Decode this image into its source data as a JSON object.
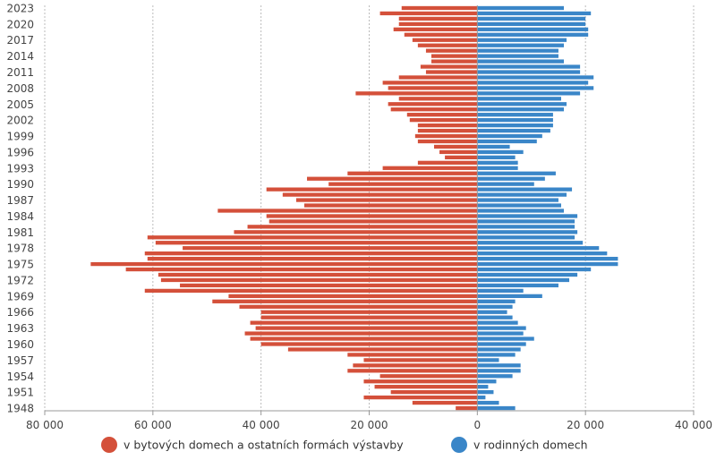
{
  "colors": {
    "left_series": "#d4503a",
    "right_series": "#3a86c8",
    "grid": "#bbbbbb",
    "axis": "#999999",
    "text": "#444444"
  },
  "chart_data": {
    "type": "bar",
    "orientation": "horizontal-diverging",
    "title": "",
    "xlabel": "",
    "ylabel": "",
    "xlim": [
      -80000,
      40000
    ],
    "grid": true,
    "legend_position": "bottom",
    "x_tick_labels": [
      "80 000",
      "60 000",
      "40 000",
      "20 000",
      "0",
      "20 000",
      "40 000"
    ],
    "y_tick_labels": [
      "2023",
      "2020",
      "2017",
      "2014",
      "2011",
      "2008",
      "2005",
      "2002",
      "1999",
      "1996",
      "1993",
      "1990",
      "1987",
      "1984",
      "1981",
      "1978",
      "1975",
      "1972",
      "1969",
      "1966",
      "1963",
      "1960",
      "1957",
      "1954",
      "1951",
      "1948"
    ],
    "categories": [
      1948,
      1949,
      1950,
      1951,
      1952,
      1953,
      1954,
      1955,
      1956,
      1957,
      1958,
      1959,
      1960,
      1961,
      1962,
      1963,
      1964,
      1965,
      1966,
      1967,
      1968,
      1969,
      1970,
      1971,
      1972,
      1973,
      1974,
      1975,
      1976,
      1977,
      1978,
      1979,
      1980,
      1981,
      1982,
      1983,
      1984,
      1985,
      1986,
      1987,
      1988,
      1989,
      1990,
      1991,
      1992,
      1993,
      1994,
      1995,
      1996,
      1997,
      1998,
      1999,
      2000,
      2001,
      2002,
      2003,
      2004,
      2005,
      2006,
      2007,
      2008,
      2009,
      2010,
      2011,
      2012,
      2013,
      2014,
      2015,
      2016,
      2017,
      2018,
      2019,
      2020,
      2021,
      2022,
      2023
    ],
    "series": [
      {
        "name": "v bytových domech a ostatních formách výstavby",
        "values": [
          4000,
          12000,
          21000,
          16000,
          19000,
          21000,
          18000,
          24000,
          23000,
          21000,
          24000,
          35000,
          40000,
          42000,
          43000,
          41000,
          42000,
          40000,
          40000,
          44000,
          49000,
          46000,
          61500,
          55000,
          58500,
          59000,
          65000,
          71500,
          61000,
          61500,
          54500,
          59500,
          61000,
          45000,
          42500,
          38500,
          39000,
          48000,
          32000,
          33500,
          36000,
          39000,
          27500,
          31500,
          24000,
          17500,
          11000,
          6000,
          7000,
          8000,
          11000,
          11500,
          11000,
          11000,
          12500,
          13000,
          16000,
          16500,
          14500,
          22500,
          16500,
          17500,
          14500,
          9500,
          10500,
          8500,
          8500,
          9500,
          11000,
          12000,
          13500,
          15500,
          14500,
          14500,
          18000,
          14000
        ],
        "color": "#d4503a"
      },
      {
        "name": "v rodinných domech",
        "values": [
          7000,
          4000,
          1500,
          3000,
          2000,
          3500,
          6500,
          8000,
          8000,
          4000,
          7000,
          8000,
          9000,
          10500,
          8500,
          9000,
          7500,
          6500,
          5500,
          6500,
          7000,
          12000,
          8500,
          15000,
          17000,
          18500,
          21000,
          26000,
          26000,
          24000,
          22500,
          19500,
          18000,
          18500,
          18000,
          18000,
          18500,
          16000,
          15500,
          15000,
          16500,
          17500,
          10500,
          12500,
          14500,
          7500,
          7500,
          7000,
          8500,
          6000,
          11000,
          12000,
          13500,
          14000,
          14000,
          14000,
          16000,
          16500,
          15500,
          19000,
          21500,
          20500,
          21500,
          19000,
          19000,
          16000,
          15000,
          15000,
          16000,
          16500,
          20500,
          20500,
          20000,
          20000,
          21000,
          16000
        ],
        "color": "#3a86c8"
      }
    ]
  }
}
